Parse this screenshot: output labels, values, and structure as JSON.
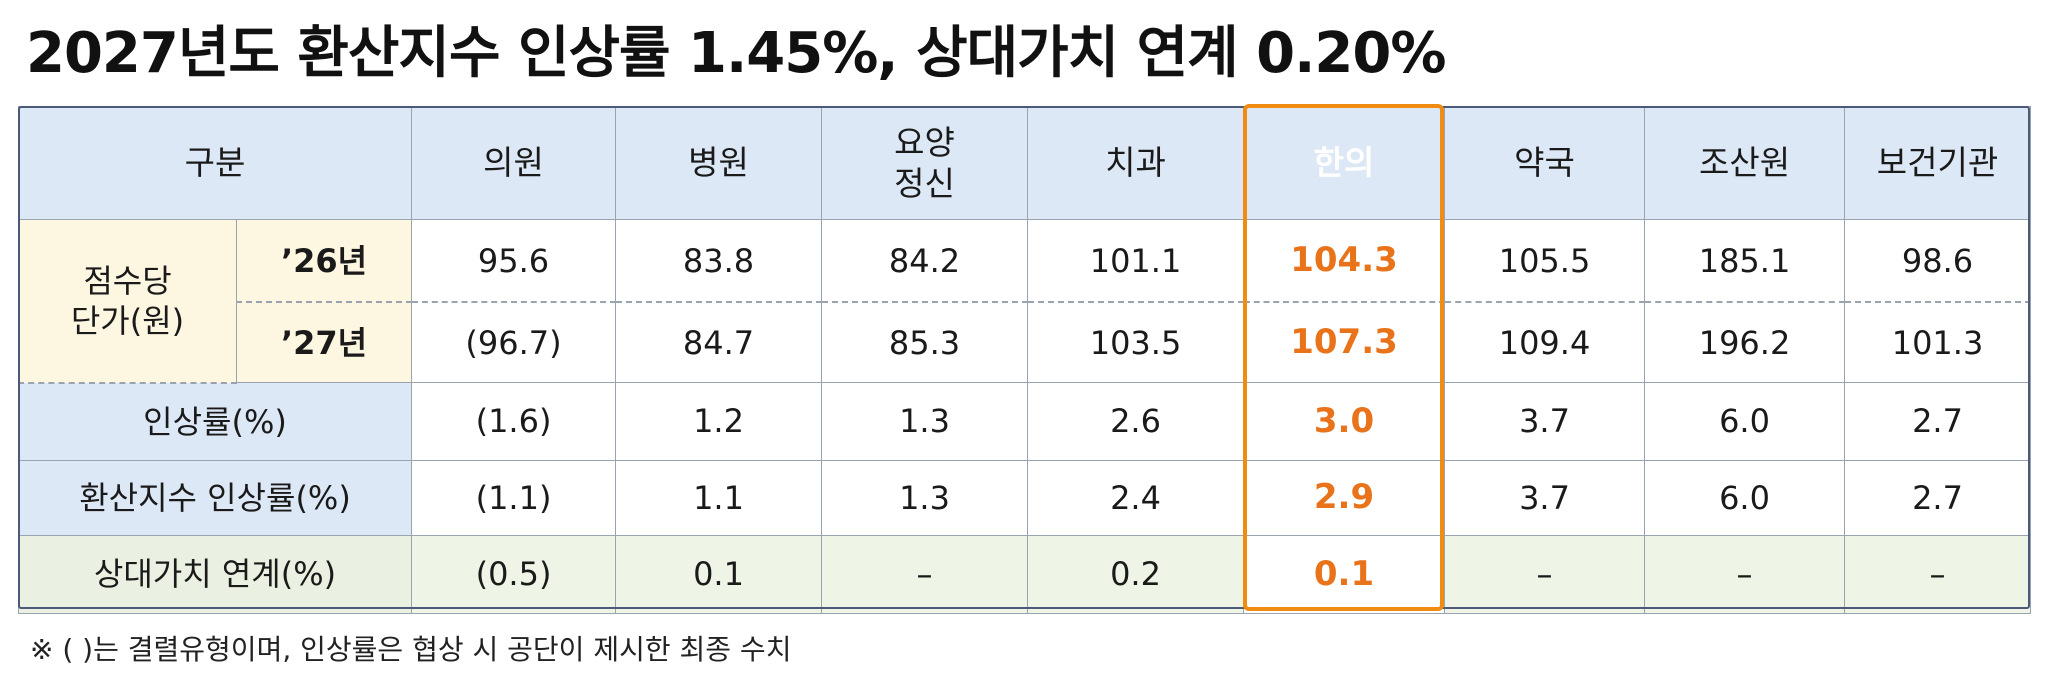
{
  "title": "2027년도 환산지수 인상률 1.45%, 상대가치 연계 0.20%",
  "header": {
    "category": "구분",
    "columns": [
      "의원",
      "병원",
      "요양\n정신",
      "치과",
      "한의",
      "약국",
      "조산원",
      "보건기관"
    ],
    "highlight_column": "한의"
  },
  "rows": {
    "unit_price_label": "점수당\n단가(원)",
    "y26": {
      "label": "’26년",
      "values": [
        "95.6",
        "83.8",
        "84.2",
        "101.1",
        "104.3",
        "105.5",
        "185.1",
        "98.6"
      ]
    },
    "y27": {
      "label": "’27년",
      "values": [
        "(96.7)",
        "84.7",
        "85.3",
        "103.5",
        "107.3",
        "109.4",
        "196.2",
        "101.3"
      ]
    },
    "rate": {
      "label": "인상률(%)",
      "values": [
        "(1.6)",
        "1.2",
        "1.3",
        "2.6",
        "3.0",
        "3.7",
        "6.0",
        "2.7"
      ]
    },
    "conversion_rate": {
      "label": "환산지수 인상률(%)",
      "values": [
        "(1.1)",
        "1.1",
        "1.3",
        "2.4",
        "2.9",
        "3.7",
        "6.0",
        "2.7"
      ]
    },
    "relative_value": {
      "label": "상대가치 연계(%)",
      "values": [
        "(0.5)",
        "0.1",
        "–",
        "0.2",
        "0.1",
        "–",
        "–",
        "–"
      ]
    }
  },
  "note": "※ ( )는 결렬유형이며, 인상률은 협상 시 공단이 제시한 최종 수치",
  "colors": {
    "highlight": "#f08c12",
    "header_bg": "#dde8f6",
    "label_cream": "#fdf6e0",
    "label_green": "#eaf1e2"
  }
}
